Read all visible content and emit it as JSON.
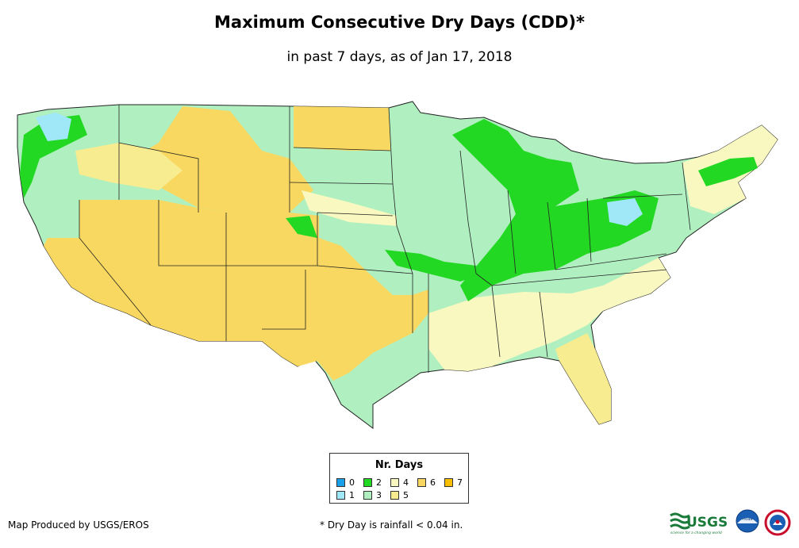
{
  "title": "Maximum Consecutive Dry Days (CDD)*",
  "subtitle": "in past 7 days, as of Jan 17, 2018",
  "legend": {
    "title": "Nr. Days",
    "items": [
      {
        "label": "0",
        "color": "#1aa0e8"
      },
      {
        "label": "1",
        "color": "#a0e8f8"
      },
      {
        "label": "2",
        "color": "#22d822"
      },
      {
        "label": "3",
        "color": "#b0f0c0"
      },
      {
        "label": "4",
        "color": "#f8f8c0"
      },
      {
        "label": "5",
        "color": "#f8ec90"
      },
      {
        "label": "6",
        "color": "#f8d860"
      },
      {
        "label": "7",
        "color": "#f8c000"
      }
    ]
  },
  "credit": "Map Produced by USGS/EROS",
  "footnote": "* Dry Day is rainfall < 0.04 in.",
  "logos": {
    "usgs_text": "USGS",
    "usgs_tagline": "science for a changing world",
    "noaa_text": "noaa"
  }
}
